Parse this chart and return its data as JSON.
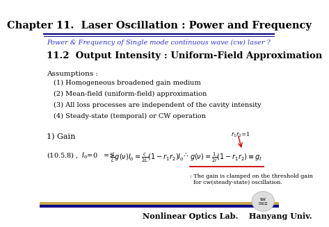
{
  "title": "Chapter 11.  Laser Oscillation : Power and Frequency",
  "subtitle": "Power & Frequency of Single mode continuous wave (cw) laser ?",
  "section": "11.2  Output Intensity : Uniform-Field Approximation",
  "assumptions_title": "Assumptions :",
  "assumptions": [
    "(1) Homogeneous broadened gain medium",
    "(2) Mean-field (uniform-field) approximation",
    "(3) All loss processes are independent of the cavity intensity",
    "(4) Steady-state (temporal) or CW operation"
  ],
  "gain_title": "1) Gain",
  "footer_text": "Nonlinear Optics Lab.    Hanyang Univ.",
  "bg_color": "#ffffff",
  "title_color": "#000000",
  "subtitle_color": "#3333cc",
  "section_color": "#000000",
  "body_color": "#000000",
  "footer_bar_gold": "#c8a84b",
  "footer_bar_navy": "#00008b",
  "footer_text_color": "#000000",
  "underline_color_title": "#000080",
  "underline_color_eq": "#cc0000",
  "arrow_color": "#cc0000"
}
